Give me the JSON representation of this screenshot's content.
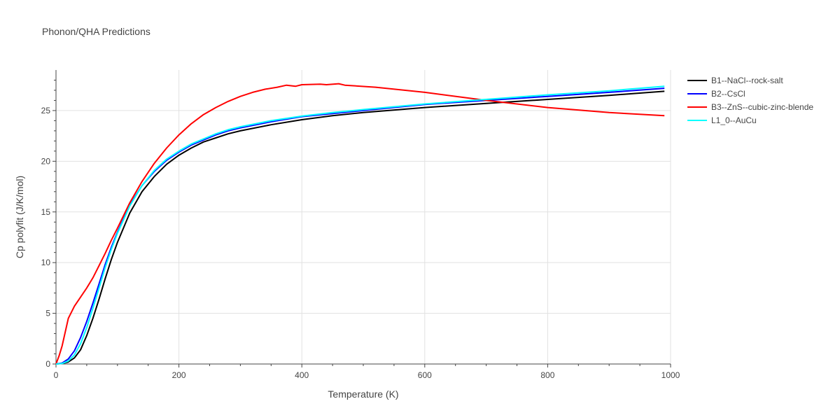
{
  "chart_data": {
    "type": "line",
    "title": "Phonon/QHA Predictions",
    "xlabel": "Temperature (K)",
    "ylabel": "Cp polyfit (J/K/mol)",
    "xlim": [
      0,
      1000
    ],
    "ylim": [
      0,
      29
    ],
    "xticks": [
      0,
      200,
      400,
      600,
      800,
      1000
    ],
    "yticks": [
      0,
      5,
      10,
      15,
      20,
      25
    ],
    "grid": true,
    "legend_position": "top-right outside",
    "series": [
      {
        "name": "B1--NaCl--rock-salt",
        "color": "#000000",
        "x": [
          0,
          10,
          20,
          30,
          40,
          50,
          60,
          70,
          80,
          90,
          100,
          120,
          140,
          160,
          180,
          200,
          220,
          240,
          260,
          280,
          300,
          350,
          400,
          450,
          500,
          600,
          700,
          800,
          900,
          990
        ],
        "y": [
          0,
          0.05,
          0.2,
          0.6,
          1.4,
          2.8,
          4.5,
          6.4,
          8.4,
          10.3,
          12.0,
          14.9,
          17.0,
          18.5,
          19.7,
          20.6,
          21.3,
          21.9,
          22.3,
          22.7,
          23.0,
          23.6,
          24.1,
          24.5,
          24.8,
          25.3,
          25.7,
          26.1,
          26.5,
          26.9
        ]
      },
      {
        "name": "B2--CsCl",
        "color": "#0000ff",
        "x": [
          0,
          10,
          20,
          30,
          40,
          50,
          60,
          70,
          80,
          90,
          100,
          120,
          140,
          160,
          180,
          200,
          220,
          240,
          260,
          280,
          300,
          350,
          400,
          450,
          500,
          600,
          700,
          800,
          900,
          990
        ],
        "y": [
          0,
          0.1,
          0.5,
          1.3,
          2.6,
          4.2,
          6.0,
          7.9,
          9.8,
          11.5,
          13.0,
          15.7,
          17.6,
          19.0,
          20.1,
          20.9,
          21.6,
          22.1,
          22.6,
          23.0,
          23.3,
          23.9,
          24.4,
          24.7,
          25.0,
          25.6,
          26.0,
          26.4,
          26.8,
          27.2
        ]
      },
      {
        "name": "B3--ZnS--cubic-zinc-blende",
        "color": "#ff0000",
        "x": [
          0,
          5,
          10,
          20,
          30,
          40,
          50,
          60,
          70,
          80,
          90,
          100,
          120,
          140,
          160,
          180,
          200,
          220,
          240,
          260,
          280,
          300,
          320,
          340,
          360,
          375,
          390,
          400,
          430,
          440,
          460,
          470,
          520,
          600,
          700,
          800,
          900,
          990
        ],
        "y": [
          0,
          0.8,
          1.8,
          4.5,
          5.7,
          6.6,
          7.5,
          8.5,
          9.7,
          10.9,
          12.2,
          13.4,
          15.9,
          18.0,
          19.8,
          21.3,
          22.6,
          23.7,
          24.6,
          25.3,
          25.9,
          26.4,
          26.8,
          27.1,
          27.3,
          27.5,
          27.4,
          27.55,
          27.6,
          27.55,
          27.65,
          27.5,
          27.3,
          26.8,
          26.0,
          25.3,
          24.8,
          24.5
        ]
      },
      {
        "name": "L1_0--AuCu",
        "color": "#00ffff",
        "x": [
          0,
          10,
          20,
          30,
          40,
          50,
          60,
          70,
          80,
          90,
          100,
          120,
          140,
          160,
          180,
          200,
          220,
          240,
          260,
          280,
          300,
          350,
          400,
          450,
          500,
          600,
          700,
          800,
          900,
          990
        ],
        "y": [
          0,
          0.05,
          0.3,
          0.9,
          2.0,
          3.6,
          5.5,
          7.5,
          9.5,
          11.3,
          12.9,
          15.6,
          17.6,
          19.1,
          20.2,
          21.0,
          21.7,
          22.2,
          22.7,
          23.1,
          23.4,
          24.0,
          24.45,
          24.8,
          25.1,
          25.65,
          26.1,
          26.55,
          26.95,
          27.4
        ]
      }
    ]
  }
}
